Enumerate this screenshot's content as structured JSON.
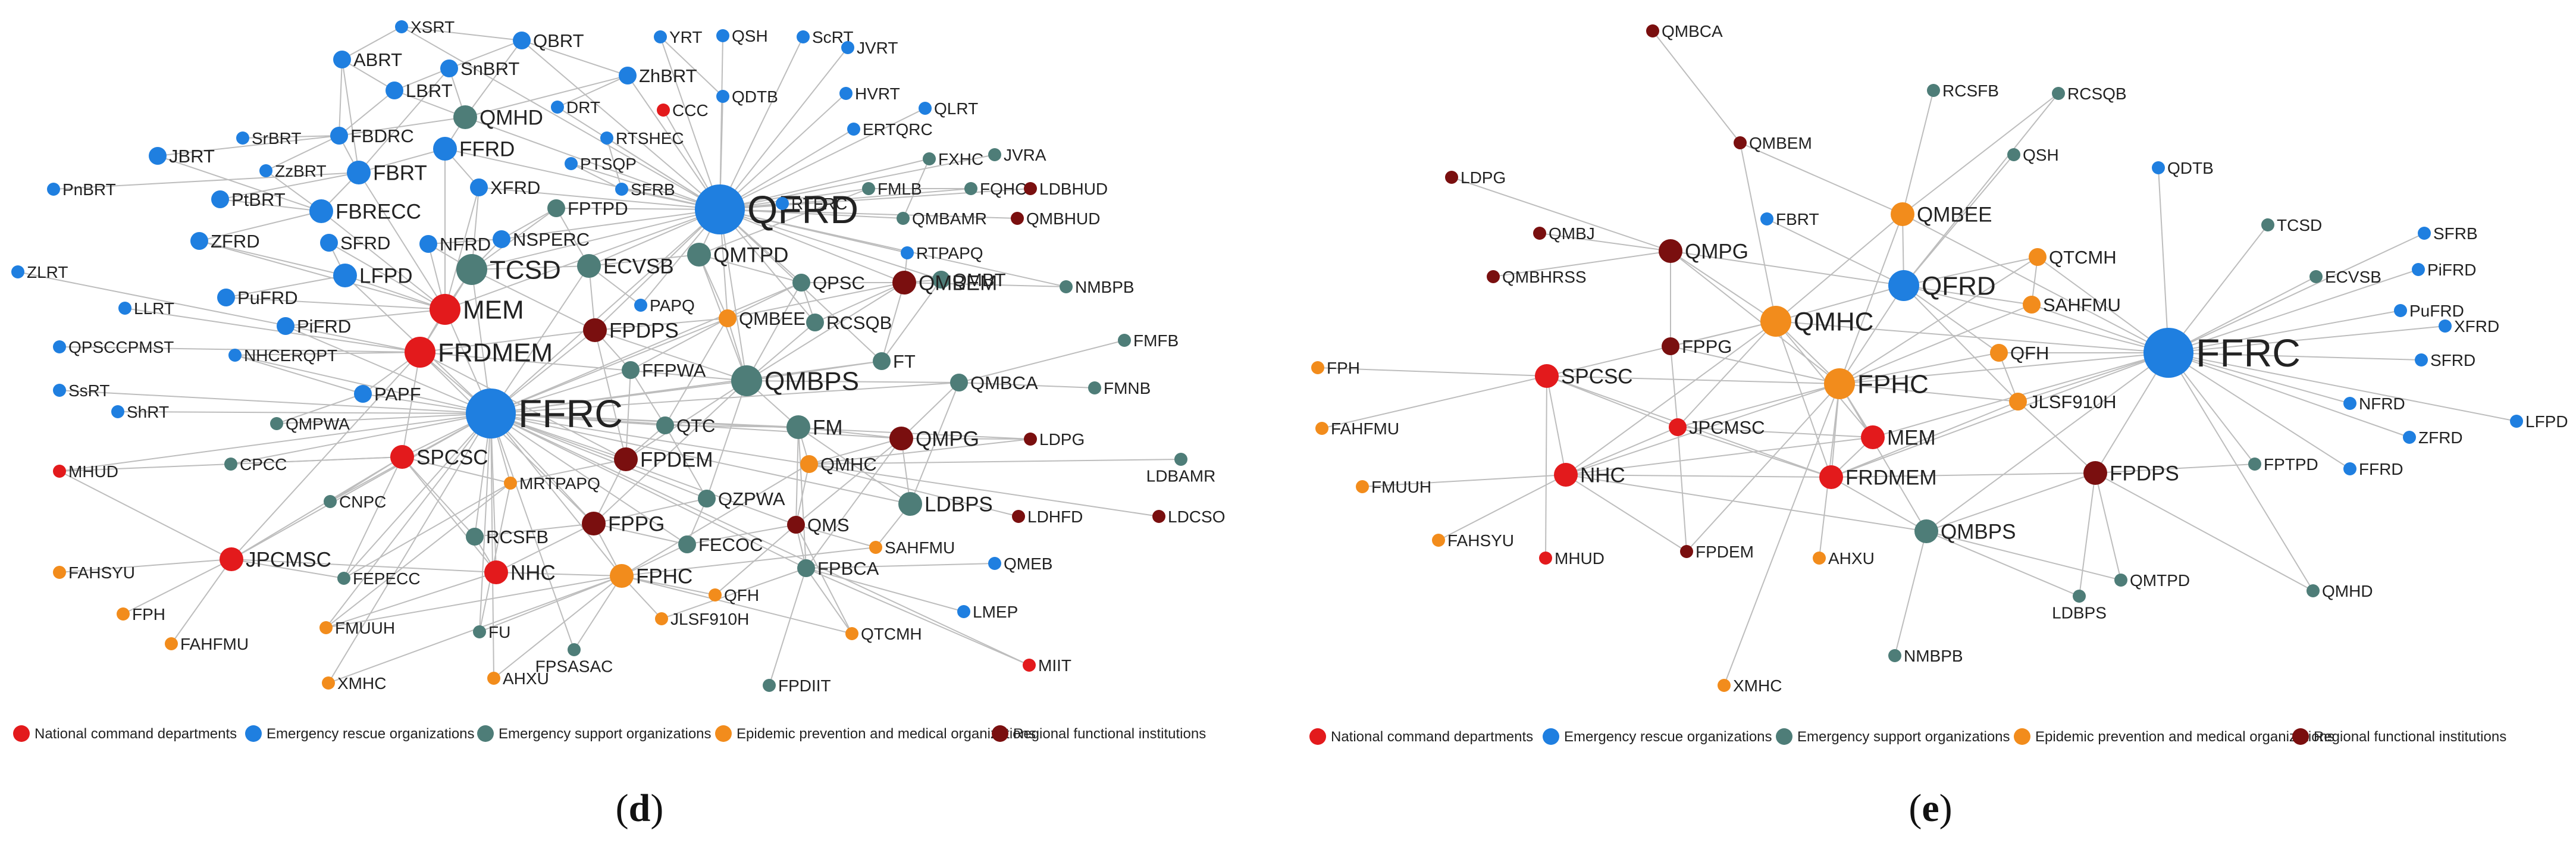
{
  "colors": {
    "national": "#e31a1c",
    "rescue": "#1f7fe0",
    "support": "#4e7d78",
    "epidemic": "#f28c1c",
    "regional": "#7a0f0f",
    "edge": "#bdbdbd"
  },
  "legend": [
    {
      "key": "national",
      "label": "National command departments"
    },
    {
      "key": "rescue",
      "label": "Emergency rescue organizations"
    },
    {
      "key": "support",
      "label": "Emergency support organizations"
    },
    {
      "key": "epidemic",
      "label": "Epidemic prevention and medical organizations"
    },
    {
      "key": "regional",
      "label": "Regional functional institutions"
    }
  ],
  "panels": [
    {
      "id": "d",
      "open": "(",
      "letter": "d",
      "close": ")",
      "nodes": [
        {
          "id": "QFRD",
          "group": "rescue",
          "size": 6
        },
        {
          "id": "FFRC",
          "group": "rescue",
          "size": 6
        },
        {
          "id": "MEM",
          "group": "national",
          "size": 4
        },
        {
          "id": "FRDMEM",
          "group": "national",
          "size": 4
        },
        {
          "id": "SPCSC",
          "group": "national",
          "size": 3
        },
        {
          "id": "NHC",
          "group": "national",
          "size": 3
        },
        {
          "id": "JPCMSC",
          "group": "national",
          "size": 3
        },
        {
          "id": "MHUD",
          "group": "national",
          "size": 1
        },
        {
          "id": "CCC",
          "group": "national",
          "size": 1
        },
        {
          "id": "MIIT",
          "group": "national",
          "size": 1
        },
        {
          "id": "TCSD",
          "group": "support",
          "size": 4
        },
        {
          "id": "ECVSB",
          "group": "support",
          "size": 3
        },
        {
          "id": "QMHD",
          "group": "support",
          "size": 3
        },
        {
          "id": "QMTPD",
          "group": "support",
          "size": 3
        },
        {
          "id": "QMBPS",
          "group": "support",
          "size": 4
        },
        {
          "id": "FM",
          "group": "support",
          "size": 3
        },
        {
          "id": "LDBPS",
          "group": "support",
          "size": 3
        },
        {
          "id": "FPBCA",
          "group": "support",
          "size": 2
        },
        {
          "id": "QZPWA",
          "group": "support",
          "size": 2
        },
        {
          "id": "FECOC",
          "group": "support",
          "size": 2
        },
        {
          "id": "RCSFB",
          "group": "support",
          "size": 2
        },
        {
          "id": "FEPECC",
          "group": "support",
          "size": 1
        },
        {
          "id": "CNPC",
          "group": "support",
          "size": 1
        },
        {
          "id": "CPCC",
          "group": "support",
          "size": 1
        },
        {
          "id": "QMPWA",
          "group": "support",
          "size": 1
        },
        {
          "id": "FFPWA",
          "group": "support",
          "size": 2
        },
        {
          "id": "QTC",
          "group": "support",
          "size": 2
        },
        {
          "id": "FPTPD",
          "group": "support",
          "size": 2
        },
        {
          "id": "QPSC",
          "group": "support",
          "size": 2
        },
        {
          "id": "RCSQB",
          "group": "support",
          "size": 2
        },
        {
          "id": "FT",
          "group": "support",
          "size": 2
        },
        {
          "id": "QMBCA",
          "group": "support",
          "size": 2
        },
        {
          "id": "QMBT",
          "group": "support",
          "size": 2
        },
        {
          "id": "FMFB",
          "group": "support",
          "size": 1
        },
        {
          "id": "FMNB",
          "group": "support",
          "size": 1
        },
        {
          "id": "NMBPB",
          "group": "support",
          "size": 1
        },
        {
          "id": "FXHC",
          "group": "support",
          "size": 1
        },
        {
          "id": "FQHC",
          "group": "support",
          "size": 1
        },
        {
          "id": "FMLB",
          "group": "support",
          "size": 1
        },
        {
          "id": "QMBAMR",
          "group": "support",
          "size": 1
        },
        {
          "id": "JVRA",
          "group": "support",
          "size": 1
        },
        {
          "id": "LDBAMR",
          "group": "support",
          "size": 1
        },
        {
          "id": "FU",
          "group": "support",
          "size": 1
        },
        {
          "id": "FPSASAC",
          "group": "support",
          "size": 1
        },
        {
          "id": "FPDIIT",
          "group": "support",
          "size": 1
        },
        {
          "id": "QMBEE",
          "group": "epidemic",
          "size": 2
        },
        {
          "id": "FPHC",
          "group": "epidemic",
          "size": 3
        },
        {
          "id": "QMHC",
          "group": "epidemic",
          "size": 2
        },
        {
          "id": "MRTPAPQ",
          "group": "epidemic",
          "size": 1
        },
        {
          "id": "SAHFMU",
          "group": "epidemic",
          "size": 1
        },
        {
          "id": "QFH",
          "group": "epidemic",
          "size": 1
        },
        {
          "id": "JLSF910H",
          "group": "epidemic",
          "size": 1
        },
        {
          "id": "QTCMH",
          "group": "epidemic",
          "size": 1
        },
        {
          "id": "FMUUH",
          "group": "epidemic",
          "size": 1
        },
        {
          "id": "FAHSYU",
          "group": "epidemic",
          "size": 1
        },
        {
          "id": "FPH",
          "group": "epidemic",
          "size": 1
        },
        {
          "id": "FAHFMU",
          "group": "epidemic",
          "size": 1
        },
        {
          "id": "XMHC",
          "group": "epidemic",
          "size": 1
        },
        {
          "id": "AHXU",
          "group": "epidemic",
          "size": 1
        },
        {
          "id": "FPDPS",
          "group": "regional",
          "size": 3
        },
        {
          "id": "FPDEM",
          "group": "regional",
          "size": 3
        },
        {
          "id": "FPPG",
          "group": "regional",
          "size": 3
        },
        {
          "id": "QMBEM",
          "group": "regional",
          "size": 3
        },
        {
          "id": "QMPG",
          "group": "regional",
          "size": 3
        },
        {
          "id": "QMS",
          "group": "regional",
          "size": 2
        },
        {
          "id": "LDPG",
          "group": "regional",
          "size": 1
        },
        {
          "id": "LDHFD",
          "group": "regional",
          "size": 1
        },
        {
          "id": "LDCSO",
          "group": "regional",
          "size": 1
        },
        {
          "id": "QMBHUD",
          "group": "regional",
          "size": 1
        },
        {
          "id": "LDBHUD",
          "group": "regional",
          "size": 1
        },
        {
          "id": "XSRT",
          "group": "rescue",
          "size": 1
        },
        {
          "id": "QBRT",
          "group": "rescue",
          "size": 2
        },
        {
          "id": "ABRT",
          "group": "rescue",
          "size": 2
        },
        {
          "id": "SnBRT",
          "group": "rescue",
          "size": 2
        },
        {
          "id": "ZhBRT",
          "group": "rescue",
          "size": 2
        },
        {
          "id": "LBRT",
          "group": "rescue",
          "size": 2
        },
        {
          "id": "YRT",
          "group": "rescue",
          "size": 1
        },
        {
          "id": "QSH",
          "group": "rescue",
          "size": 1
        },
        {
          "id": "ScRT",
          "group": "rescue",
          "size": 1
        },
        {
          "id": "JVRT",
          "group": "rescue",
          "size": 1
        },
        {
          "id": "QDTB",
          "group": "rescue",
          "size": 1
        },
        {
          "id": "HVRT",
          "group": "rescue",
          "size": 1
        },
        {
          "id": "QLRT",
          "group": "rescue",
          "size": 1
        },
        {
          "id": "ERTQRC",
          "group": "rescue",
          "size": 1
        },
        {
          "id": "DRT",
          "group": "rescue",
          "size": 1
        },
        {
          "id": "RTSHEC",
          "group": "rescue",
          "size": 1
        },
        {
          "id": "PTSQP",
          "group": "rescue",
          "size": 1
        },
        {
          "id": "SFRB",
          "group": "rescue",
          "size": 1
        },
        {
          "id": "RTFRC",
          "group": "rescue",
          "size": 1
        },
        {
          "id": "RTPAPQ",
          "group": "rescue",
          "size": 1
        },
        {
          "id": "FBDRC",
          "group": "rescue",
          "size": 2
        },
        {
          "id": "SrBRT",
          "group": "rescue",
          "size": 1
        },
        {
          "id": "JBRT",
          "group": "rescue",
          "size": 2
        },
        {
          "id": "ZzBRT",
          "group": "rescue",
          "size": 1
        },
        {
          "id": "FBRT",
          "group": "rescue",
          "size": 3
        },
        {
          "id": "FFRD",
          "group": "rescue",
          "size": 3
        },
        {
          "id": "PnBRT",
          "group": "rescue",
          "size": 1
        },
        {
          "id": "PtBRT",
          "group": "rescue",
          "size": 2
        },
        {
          "id": "FBRECC",
          "group": "rescue",
          "size": 3
        },
        {
          "id": "XFRD",
          "group": "rescue",
          "size": 2
        },
        {
          "id": "ZFRD",
          "group": "rescue",
          "size": 2
        },
        {
          "id": "SFRD",
          "group": "rescue",
          "size": 2
        },
        {
          "id": "NFRD",
          "group": "rescue",
          "size": 2
        },
        {
          "id": "NSPERC",
          "group": "rescue",
          "size": 2
        },
        {
          "id": "LFPD",
          "group": "rescue",
          "size": 3
        },
        {
          "id": "ZLRT",
          "group": "rescue",
          "size": 1
        },
        {
          "id": "LLRT",
          "group": "rescue",
          "size": 1
        },
        {
          "id": "PuFRD",
          "group": "rescue",
          "size": 2
        },
        {
          "id": "PiFRD",
          "group": "rescue",
          "size": 2
        },
        {
          "id": "QPSCCPMST",
          "group": "rescue",
          "size": 1
        },
        {
          "id": "NHCERQPT",
          "group": "rescue",
          "size": 1
        },
        {
          "id": "PAPQ",
          "group": "rescue",
          "size": 1
        },
        {
          "id": "PAPF",
          "group": "rescue",
          "size": 2
        },
        {
          "id": "SsRT",
          "group": "rescue",
          "size": 1
        },
        {
          "id": "ShRT",
          "group": "rescue",
          "size": 1
        },
        {
          "id": "QMEB",
          "group": "rescue",
          "size": 1
        },
        {
          "id": "LMEP",
          "group": "rescue",
          "size": 1
        }
      ]
    },
    {
      "id": "e",
      "open": "(",
      "letter": "e",
      "close": ")",
      "nodes": [
        {
          "id": "FFRC",
          "group": "rescue",
          "size": 6
        },
        {
          "id": "QFRD",
          "group": "rescue",
          "size": 4
        },
        {
          "id": "FBRT",
          "group": "rescue",
          "size": 1
        },
        {
          "id": "QDTB",
          "group": "rescue",
          "size": 1
        },
        {
          "id": "SFRB",
          "group": "rescue",
          "size": 1
        },
        {
          "id": "PiFRD",
          "group": "rescue",
          "size": 1
        },
        {
          "id": "PuFRD",
          "group": "rescue",
          "size": 1
        },
        {
          "id": "XFRD",
          "group": "rescue",
          "size": 1
        },
        {
          "id": "SFRD",
          "group": "rescue",
          "size": 1
        },
        {
          "id": "NFRD",
          "group": "rescue",
          "size": 1
        },
        {
          "id": "LFPD",
          "group": "rescue",
          "size": 1
        },
        {
          "id": "ZFRD",
          "group": "rescue",
          "size": 1
        },
        {
          "id": "FFRD",
          "group": "rescue",
          "size": 1
        },
        {
          "id": "SPCSC",
          "group": "national",
          "size": 3
        },
        {
          "id": "NHC",
          "group": "national",
          "size": 3
        },
        {
          "id": "JPCMSC",
          "group": "national",
          "size": 2
        },
        {
          "id": "MEM",
          "group": "national",
          "size": 3
        },
        {
          "id": "FRDMEM",
          "group": "national",
          "size": 3
        },
        {
          "id": "MHUD",
          "group": "national",
          "size": 1
        },
        {
          "id": "QMHC",
          "group": "epidemic",
          "size": 4
        },
        {
          "id": "FPHC",
          "group": "epidemic",
          "size": 4
        },
        {
          "id": "QMBEE",
          "group": "epidemic",
          "size": 3
        },
        {
          "id": "QTCMH",
          "group": "epidemic",
          "size": 2
        },
        {
          "id": "SAHFMU",
          "group": "epidemic",
          "size": 2
        },
        {
          "id": "QFH",
          "group": "epidemic",
          "size": 2
        },
        {
          "id": "JLSF910H",
          "group": "epidemic",
          "size": 2
        },
        {
          "id": "FPH",
          "group": "epidemic",
          "size": 1
        },
        {
          "id": "FAHFMU",
          "group": "epidemic",
          "size": 1
        },
        {
          "id": "FMUUH",
          "group": "epidemic",
          "size": 1
        },
        {
          "id": "FAHSYU",
          "group": "epidemic",
          "size": 1
        },
        {
          "id": "AHXU",
          "group": "epidemic",
          "size": 1
        },
        {
          "id": "XMHC",
          "group": "epidemic",
          "size": 1
        },
        {
          "id": "QMPG",
          "group": "regional",
          "size": 3
        },
        {
          "id": "FPPG",
          "group": "regional",
          "size": 2
        },
        {
          "id": "FPDPS",
          "group": "regional",
          "size": 3
        },
        {
          "id": "FPDEM",
          "group": "regional",
          "size": 1
        },
        {
          "id": "QMBEM",
          "group": "regional",
          "size": 1
        },
        {
          "id": "QMBCA",
          "group": "regional",
          "size": 1
        },
        {
          "id": "LDPG",
          "group": "regional",
          "size": 1
        },
        {
          "id": "QMBJ",
          "group": "regional",
          "size": 1
        },
        {
          "id": "QMBHRSS",
          "group": "regional",
          "size": 1
        },
        {
          "id": "QMBPS",
          "group": "support",
          "size": 3
        },
        {
          "id": "RCSFB",
          "group": "support",
          "size": 1
        },
        {
          "id": "RCSQB",
          "group": "support",
          "size": 1
        },
        {
          "id": "QSH",
          "group": "support",
          "size": 1
        },
        {
          "id": "TCSD",
          "group": "support",
          "size": 1
        },
        {
          "id": "ECVSB",
          "group": "support",
          "size": 1
        },
        {
          "id": "FPTPD",
          "group": "support",
          "size": 1
        },
        {
          "id": "QMTPD",
          "group": "support",
          "size": 1
        },
        {
          "id": "QMHD",
          "group": "support",
          "size": 1
        },
        {
          "id": "LDBPS",
          "group": "support",
          "size": 1
        },
        {
          "id": "NMBPB",
          "group": "support",
          "size": 1
        }
      ]
    }
  ]
}
